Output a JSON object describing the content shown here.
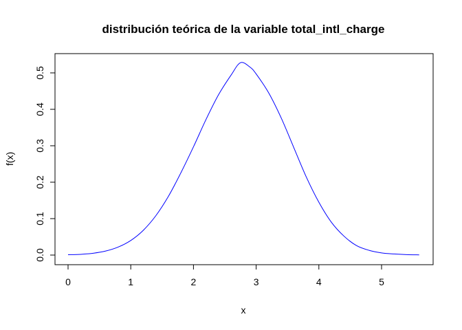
{
  "chart_data": {
    "type": "line",
    "title": "distribución teórica de la variable total_intl_charge",
    "xlabel": "x",
    "ylabel": "f(x)",
    "xlim": [
      0,
      5.6
    ],
    "ylim": [
      0,
      0.53
    ],
    "xticks": [
      "0",
      "1",
      "2",
      "3",
      "4",
      "5"
    ],
    "yticks": [
      "0.0",
      "0.1",
      "0.2",
      "0.3",
      "0.4",
      "0.5"
    ],
    "grid": false,
    "legend": "none",
    "series": [
      {
        "color": "#0000ff",
        "x": [
          0.0,
          0.2,
          0.4,
          0.6,
          0.8,
          1.0,
          1.2,
          1.4,
          1.6,
          1.8,
          2.0,
          2.2,
          2.4,
          2.6,
          2.75,
          2.9,
          3.0,
          3.2,
          3.4,
          3.6,
          3.8,
          4.0,
          4.2,
          4.4,
          4.6,
          4.8,
          5.0,
          5.2,
          5.4,
          5.6
        ],
        "y": [
          0.001,
          0.002,
          0.005,
          0.011,
          0.022,
          0.04,
          0.068,
          0.108,
          0.161,
          0.226,
          0.297,
          0.372,
          0.44,
          0.494,
          0.528,
          0.516,
          0.497,
          0.445,
          0.376,
          0.295,
          0.214,
          0.145,
          0.09,
          0.052,
          0.026,
          0.013,
          0.006,
          0.003,
          0.0012,
          0.0005
        ]
      }
    ]
  }
}
